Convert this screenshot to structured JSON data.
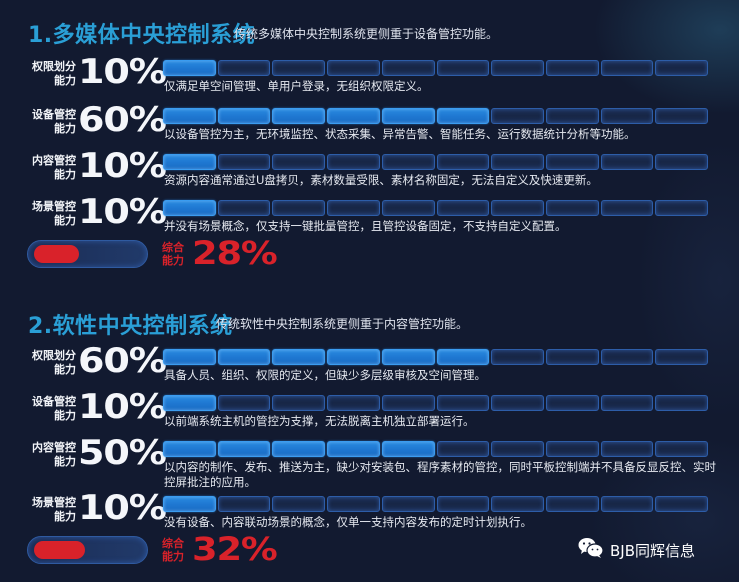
{
  "sections": [
    {
      "title": "1.多媒体中央控制系统",
      "subtitle": "传统多媒体中央控制系统更侧重于设备管控功能。",
      "rows": [
        {
          "label_line1": "权限划分",
          "label_line2": "能力",
          "percent": "10%",
          "filled": 1,
          "total": 10,
          "description": "仅满足单空间管理、单用户登录，无组织权限定义。"
        },
        {
          "label_line1": "设备管控",
          "label_line2": "能力",
          "percent": "60%",
          "filled": 6,
          "total": 10,
          "description": "以设备管控为主，无环境监控、状态采集、异常告警、智能任务、运行数据统计分析等功能。"
        },
        {
          "label_line1": "内容管控",
          "label_line2": "能力",
          "percent": "10%",
          "filled": 1,
          "total": 10,
          "description": "资源内容通常通过U盘拷贝，素材数量受限、素材名称固定，无法自定义及快速更新。"
        },
        {
          "label_line1": "场景管控",
          "label_line2": "能力",
          "percent": "10%",
          "filled": 1,
          "total": 10,
          "description": "并没有场景概念，仅支持一键批量管控，且管控设备固定，不支持自定义配置。"
        }
      ],
      "summary": {
        "label_line1": "综合",
        "label_line2": "能力",
        "percent": "28%",
        "value": 28
      }
    },
    {
      "title": "2.软性中央控制系统",
      "subtitle": "传统软性中央控制系统更侧重于内容管控功能。",
      "rows": [
        {
          "label_line1": "权限划分",
          "label_line2": "能力",
          "percent": "60%",
          "filled": 6,
          "total": 10,
          "description": "具备人员、组织、权限的定义，但缺少多层级审核及空间管理。"
        },
        {
          "label_line1": "设备管控",
          "label_line2": "能力",
          "percent": "10%",
          "filled": 1,
          "total": 10,
          "description": "以前端系统主机的管控为支撑，无法脱离主机独立部署运行。"
        },
        {
          "label_line1": "内容管控",
          "label_line2": "能力",
          "percent": "50%",
          "filled": 5,
          "total": 10,
          "description": "以内容的制作、发布、推送为主，缺少对安装包、程序素材的管控，同时平板控制端并不具备反显反控、实时控屏批注的应用。"
        },
        {
          "label_line1": "场景管控",
          "label_line2": "能力",
          "percent": "10%",
          "filled": 1,
          "total": 10,
          "description": "没有设备、内容联动场景的概念，仅单一支持内容发布的定时计划执行。"
        }
      ],
      "summary": {
        "label_line1": "综合",
        "label_line2": "能力",
        "percent": "32%",
        "value": 32
      }
    }
  ],
  "watermark": {
    "icon": "wechat-icon",
    "text": "BJB同辉信息"
  },
  "colors": {
    "background": "#121a30",
    "title": "#2a9fd6",
    "segment_on": "#1f78d2",
    "segment_off": "#1a2a4c",
    "summary_red": "#d9222a"
  }
}
